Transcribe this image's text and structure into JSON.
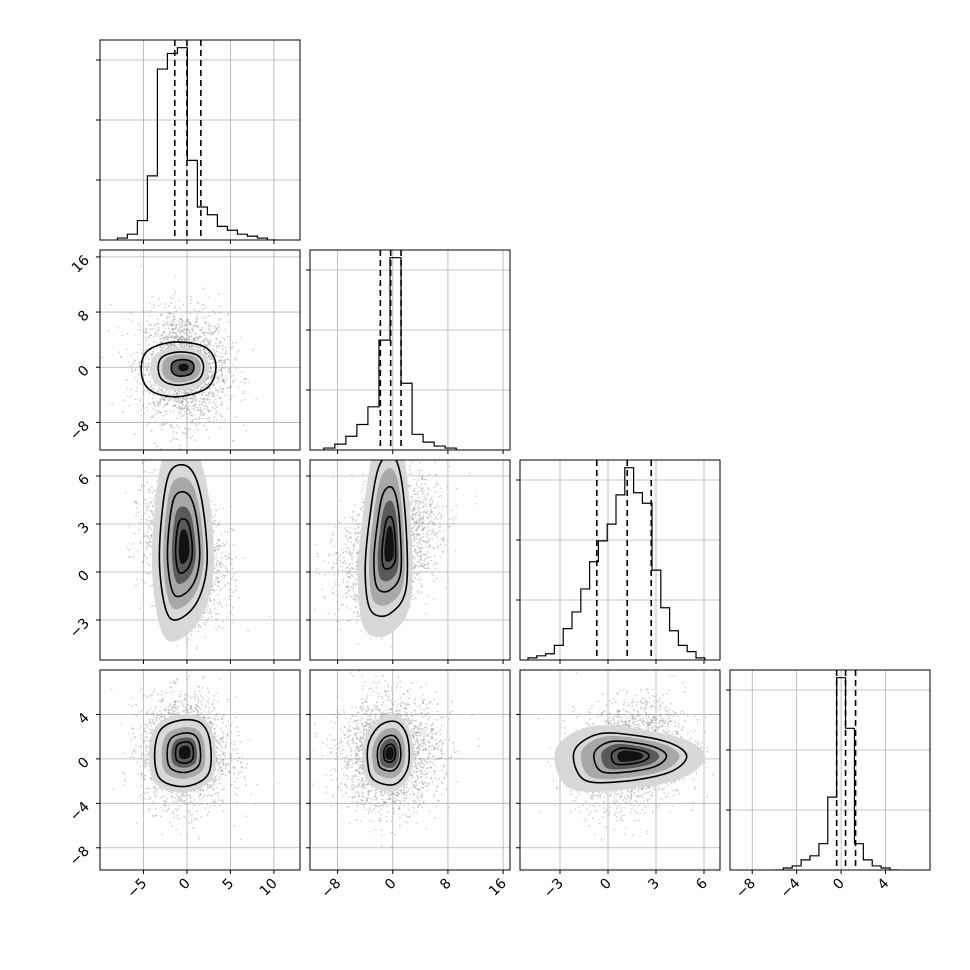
{
  "chart_data": {
    "type": "corner",
    "grid": true,
    "parameters": [
      {
        "range": [
          -10,
          13
        ],
        "ticks": [
          -5,
          0,
          5,
          10
        ],
        "tick_labels": [
          "−5",
          "0",
          "5",
          "10"
        ],
        "quantiles": [
          -1.4,
          0.0,
          1.6
        ]
      },
      {
        "range": [
          -12,
          17
        ],
        "ticks": [
          -8,
          0,
          8,
          16
        ],
        "tick_labels": [
          "−8",
          "0",
          "8",
          "16"
        ],
        "quantiles": [
          -1.8,
          -0.3,
          1.2
        ]
      },
      {
        "range": [
          -5.5,
          7.0
        ],
        "ticks": [
          -3,
          0,
          3,
          6
        ],
        "tick_labels": [
          "−3",
          "0",
          "3",
          "6"
        ],
        "quantiles": [
          -0.7,
          1.2,
          2.7
        ]
      },
      {
        "range": [
          -10,
          8
        ],
        "ticks": [
          -8,
          -4,
          0,
          4
        ],
        "tick_labels": [
          "−8",
          "−4",
          "0",
          "4"
        ],
        "quantiles": [
          -0.4,
          0.4,
          1.3
        ]
      }
    ],
    "histograms": [
      {
        "edges": [
          -8.0,
          -6.85,
          -5.7,
          -4.55,
          -3.4,
          -2.25,
          -1.1,
          0.05,
          1.2,
          2.35,
          3.5,
          4.65,
          5.8,
          6.95,
          8.1,
          9.25,
          10.4
        ],
        "counts": [
          0.01,
          0.03,
          0.1,
          0.33,
          0.88,
          0.96,
          0.99,
          0.41,
          0.17,
          0.13,
          0.07,
          0.05,
          0.03,
          0.02,
          0.01,
          0.0
        ]
      },
      {
        "edges": [
          -10.0,
          -8.4,
          -6.8,
          -5.2,
          -3.6,
          -2.0,
          -0.4,
          1.2,
          2.8,
          4.4,
          6.0,
          7.6,
          9.2
        ],
        "counts": [
          0.01,
          0.03,
          0.07,
          0.13,
          0.22,
          0.56,
          0.98,
          0.34,
          0.08,
          0.04,
          0.02,
          0.01
        ]
      },
      {
        "edges": [
          -5.0,
          -4.45,
          -3.9,
          -3.35,
          -2.8,
          -2.25,
          -1.7,
          -1.15,
          -0.6,
          -0.05,
          0.5,
          1.05,
          1.6,
          2.15,
          2.75,
          3.3,
          3.85,
          4.4,
          4.95,
          5.5,
          6.05
        ],
        "counts": [
          0.01,
          0.02,
          0.03,
          0.07,
          0.15,
          0.23,
          0.34,
          0.47,
          0.57,
          0.65,
          0.79,
          0.92,
          0.8,
          0.75,
          0.43,
          0.25,
          0.14,
          0.07,
          0.04,
          0.01
        ]
      },
      {
        "edges": [
          -6.0,
          -5.2,
          -4.4,
          -3.6,
          -2.8,
          -2.0,
          -1.2,
          -0.4,
          0.4,
          1.2,
          2.0,
          2.8,
          3.6,
          4.4,
          5.2
        ],
        "counts": [
          0.0,
          0.01,
          0.02,
          0.05,
          0.07,
          0.13,
          0.36,
          0.95,
          0.7,
          0.13,
          0.05,
          0.02,
          0.01,
          0.0
        ]
      }
    ],
    "pairs": [
      {
        "row": 1,
        "col": 0,
        "center": [
          -0.3,
          0.0
        ],
        "sigma": [
          2.5,
          4.0
        ],
        "rho": -0.05,
        "contours": [
          [
            -1.2,
            -1
          ],
          [
            -0.3,
            -1.3
          ],
          [
            0.8,
            -0.9
          ],
          [
            1.1,
            0.1
          ],
          [
            0.7,
            0.9
          ],
          [
            -0.4,
            1.1
          ],
          [
            -1.3,
            0.7
          ],
          [
            -1.5,
            -0.2
          ]
        ],
        "contour_scales": [
          1.0,
          2.0,
          3.3
        ]
      },
      {
        "row": 2,
        "col": 0,
        "center": [
          -0.3,
          1.5
        ],
        "sigma": [
          2.3,
          2.0
        ],
        "rho": -0.3,
        "contours": [
          [
            -0.8,
            -2.2
          ],
          [
            0.6,
            -1.8
          ],
          [
            1.3,
            -0.5
          ],
          [
            1.0,
            1.5
          ],
          [
            0.3,
            2.5
          ],
          [
            -0.8,
            2.4
          ],
          [
            -1.3,
            1.0
          ],
          [
            -1.4,
            -0.8
          ]
        ],
        "contour_scales": [
          0.7,
          1.35,
          2.0
        ]
      },
      {
        "row": 2,
        "col": 1,
        "center": [
          -0.4,
          1.6
        ],
        "sigma": [
          3.5,
          2.0
        ],
        "rho": 0.35,
        "contours": [
          [
            -1.4,
            -2
          ],
          [
            0,
            -2.1
          ],
          [
            1.2,
            -1.2
          ],
          [
            1.0,
            1.5
          ],
          [
            0.3,
            2.8
          ],
          [
            -0.8,
            2.5
          ],
          [
            -1.5,
            0.8
          ],
          [
            -1.8,
            -0.8
          ]
        ],
        "contour_scales": [
          0.65,
          1.3,
          2.0
        ]
      },
      {
        "row": 3,
        "col": 0,
        "center": [
          -0.2,
          0.6
        ],
        "sigma": [
          2.5,
          2.5
        ],
        "rho": -0.05,
        "contours": [
          [
            -1.3,
            -1.1
          ],
          [
            0,
            -1.4
          ],
          [
            1.2,
            -0.9
          ],
          [
            1.3,
            0.4
          ],
          [
            0.8,
            1.2
          ],
          [
            -0.3,
            1.3
          ],
          [
            -1.3,
            0.9
          ],
          [
            -1.6,
            -0.1
          ]
        ],
        "contour_scales": [
          0.7,
          1.3,
          2.2
        ]
      },
      {
        "row": 3,
        "col": 1,
        "center": [
          -0.4,
          0.5
        ],
        "sigma": [
          3.6,
          2.5
        ],
        "rho": 0.05,
        "contours": [
          [
            -1.1,
            -1.1
          ],
          [
            0.3,
            -1.3
          ],
          [
            1.2,
            -0.6
          ],
          [
            1.2,
            0.6
          ],
          [
            0.5,
            1.3
          ],
          [
            -0.6,
            1.2
          ],
          [
            -1.4,
            0.5
          ],
          [
            -1.5,
            -0.4
          ]
        ],
        "contour_scales": [
          0.6,
          1.2,
          2.15
        ]
      },
      {
        "row": 3,
        "col": 2,
        "center": [
          1.4,
          0.3
        ],
        "sigma": [
          1.7,
          2.4
        ],
        "rho": 0.2,
        "contours": [
          [
            -1.5,
            -1.1
          ],
          [
            -0.3,
            -1.2
          ],
          [
            1.2,
            -0.8
          ],
          [
            1.8,
            -0.1
          ],
          [
            1.4,
            0.5
          ],
          [
            0.3,
            0.9
          ],
          [
            -1.0,
            1.0
          ],
          [
            -1.8,
            0.2
          ]
        ],
        "contour_scales": [
          0.65,
          1.25,
          1.95
        ]
      }
    ]
  }
}
